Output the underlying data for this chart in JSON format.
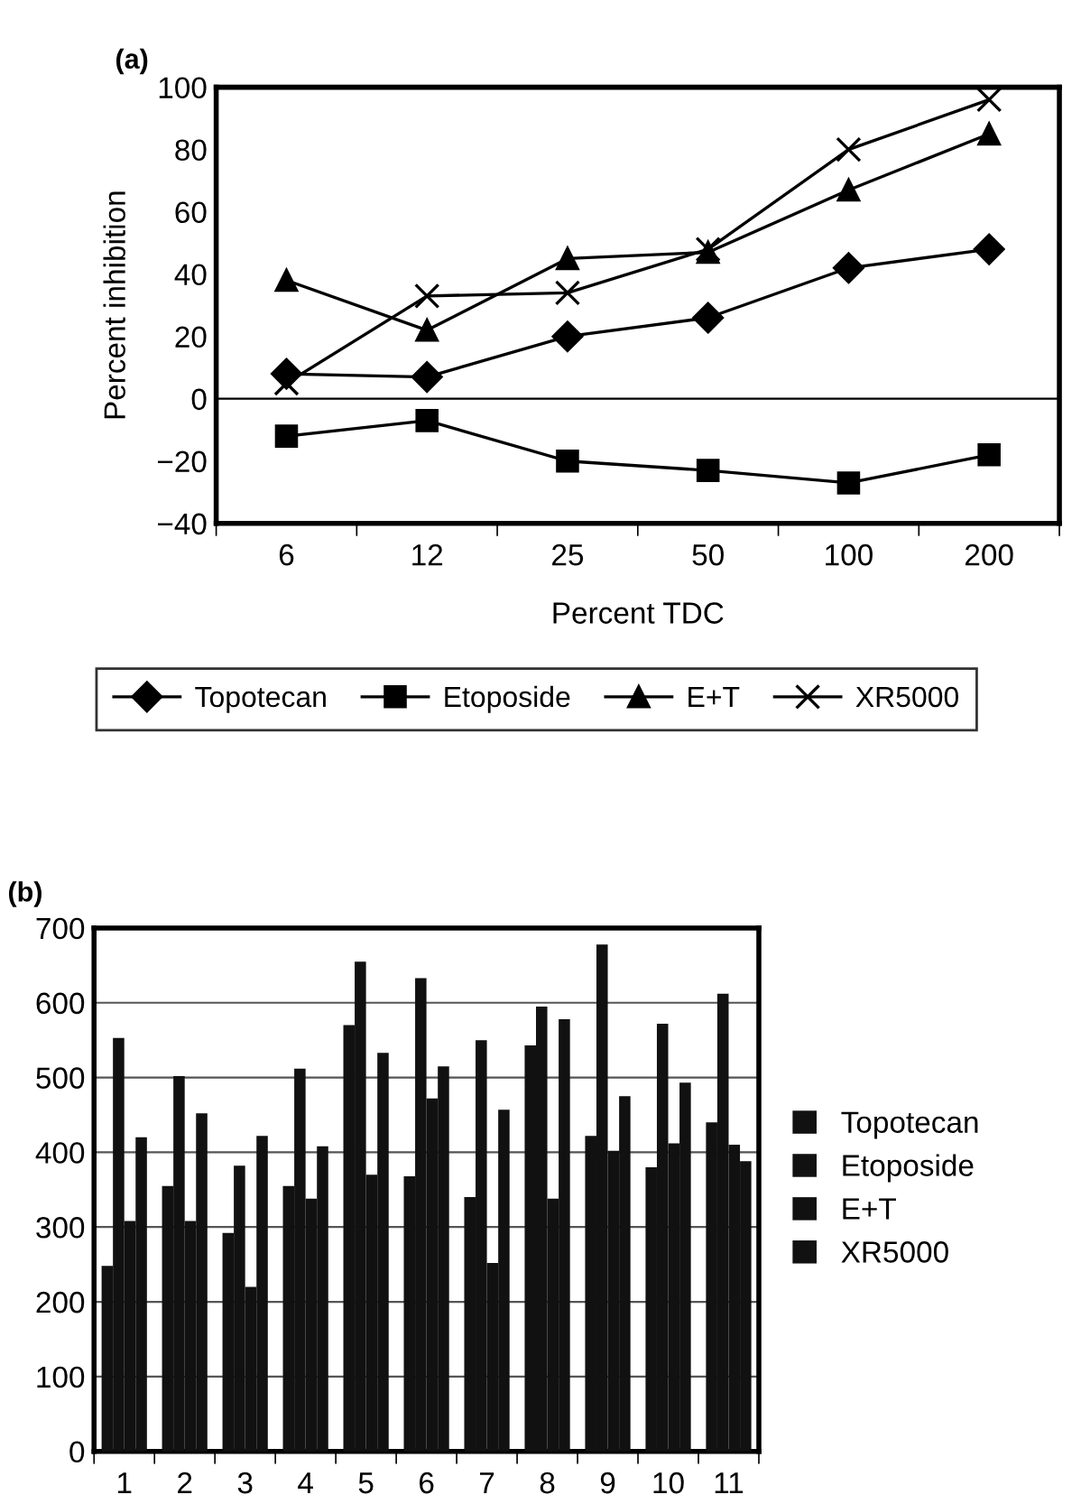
{
  "chart_data": [
    {
      "type": "line",
      "title": "(a)",
      "xlabel": "Percent TDC",
      "ylabel": "Percent inhibition",
      "categories": [
        "6",
        "12",
        "25",
        "50",
        "100",
        "200"
      ],
      "series": [
        {
          "name": "Topotecan",
          "color": "#000000",
          "marker": "diamond",
          "values": [
            8,
            7,
            20,
            26,
            42,
            48
          ]
        },
        {
          "name": "Etoposide",
          "color": "#000000",
          "marker": "square",
          "values": [
            -12,
            -7,
            -20,
            -23,
            -27,
            -18
          ]
        },
        {
          "name": "E+T",
          "color": "#000000",
          "marker": "triangle",
          "values": [
            38,
            22,
            45,
            47,
            67,
            85
          ]
        },
        {
          "name": "XR5000",
          "color": "#000000",
          "marker": "cross",
          "values": [
            5,
            33,
            34,
            48,
            80,
            96
          ]
        }
      ],
      "ylim": [
        -40,
        100
      ],
      "yticks": [
        -40,
        -20,
        0,
        20,
        40,
        60,
        80,
        100
      ],
      "ref_lines": [
        {
          "axis": "y",
          "value": 0
        }
      ],
      "grid": false,
      "legend": "bottom",
      "line_style": "solid"
    },
    {
      "type": "bar",
      "title": "(b)",
      "categories": [
        "1",
        "2",
        "3",
        "4",
        "5",
        "6",
        "7",
        "8",
        "9",
        "10",
        "11"
      ],
      "series": [
        {
          "name": "Topotecan",
          "color": "#111111",
          "values": [
            248,
            355,
            292,
            355,
            570,
            368,
            340,
            543,
            422,
            380,
            440
          ]
        },
        {
          "name": "Etoposide",
          "color": "#111111",
          "values": [
            553,
            502,
            382,
            512,
            655,
            633,
            550,
            595,
            678,
            572,
            612
          ]
        },
        {
          "name": "E+T",
          "color": "#111111",
          "values": [
            308,
            308,
            220,
            338,
            370,
            472,
            252,
            338,
            402,
            412,
            410
          ]
        },
        {
          "name": "XR5000",
          "color": "#111111",
          "values": [
            420,
            452,
            422,
            408,
            533,
            515,
            457,
            578,
            475,
            493,
            388
          ]
        }
      ],
      "ylim": [
        0,
        700
      ],
      "yticks": [
        0,
        100,
        200,
        300,
        400,
        500,
        600,
        700
      ],
      "grid": "y",
      "legend": "right"
    }
  ]
}
